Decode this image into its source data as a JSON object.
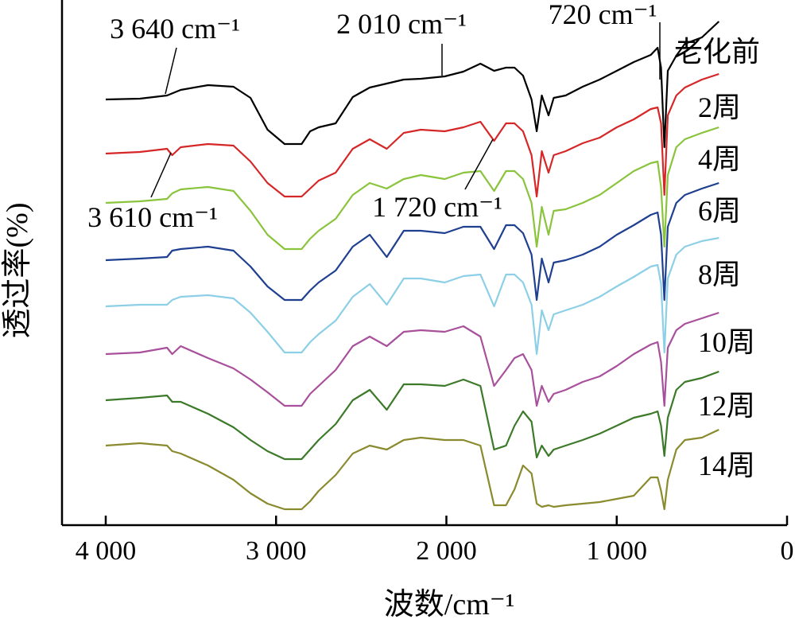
{
  "chart_data": {
    "type": "line",
    "title": "",
    "xlabel": "波数/cm⁻¹",
    "ylabel": "透过率(%)",
    "xlim": [
      4000,
      0
    ],
    "x_reversed": true,
    "xticks": [
      4000,
      3000,
      2000,
      1000,
      0
    ],
    "xtick_labels": [
      "4 000",
      "3 000",
      "2 000",
      "1 000",
      "0"
    ],
    "grid": false,
    "legend": "none",
    "series": [
      {
        "name": "老化前",
        "color": "#000000",
        "x": [
          4000,
          3800,
          3640,
          3560,
          3400,
          3250,
          3150,
          3050,
          2950,
          2850,
          2800,
          2750,
          2650,
          2550,
          2450,
          2350,
          2250,
          2150,
          2010,
          1900,
          1800,
          1720,
          1650,
          1600,
          1550,
          1500,
          1470,
          1440,
          1400,
          1370,
          1300,
          1200,
          1100,
          1000,
          900,
          800,
          760,
          740,
          720,
          700,
          650,
          600,
          500,
          400
        ],
        "y": [
          120,
          119,
          115,
          108,
          102,
          104,
          118,
          158,
          176,
          176,
          160,
          155,
          150,
          117,
          105,
          100,
          95,
          94,
          91,
          85,
          75,
          84,
          80,
          80,
          90,
          120,
          160,
          115,
          140,
          118,
          115,
          104,
          95,
          84,
          73,
          64,
          55,
          80,
          180,
          84,
          65,
          50,
          42,
          22
        ]
      },
      {
        "name": "2周",
        "color": "#d62728",
        "x": [
          4000,
          3800,
          3640,
          3610,
          3560,
          3400,
          3250,
          3150,
          3050,
          2950,
          2850,
          2800,
          2750,
          2650,
          2550,
          2450,
          2350,
          2250,
          2150,
          2010,
          1900,
          1800,
          1720,
          1650,
          1600,
          1550,
          1500,
          1470,
          1440,
          1400,
          1370,
          1300,
          1200,
          1100,
          1000,
          900,
          800,
          760,
          740,
          720,
          700,
          650,
          600,
          500,
          400
        ],
        "y": [
          188,
          186,
          182,
          190,
          180,
          176,
          178,
          198,
          225,
          242,
          242,
          232,
          222,
          212,
          182,
          170,
          182,
          162,
          158,
          160,
          155,
          148,
          172,
          150,
          150,
          160,
          190,
          242,
          185,
          212,
          190,
          185,
          175,
          168,
          155,
          145,
          132,
          130,
          150,
          240,
          140,
          115,
          105,
          95,
          88
        ]
      },
      {
        "name": "4周",
        "color": "#8ac43c",
        "x": [
          4000,
          3800,
          3640,
          3610,
          3560,
          3400,
          3250,
          3150,
          3050,
          2950,
          2850,
          2800,
          2750,
          2650,
          2550,
          2450,
          2350,
          2250,
          2150,
          2010,
          1900,
          1800,
          1720,
          1650,
          1600,
          1550,
          1500,
          1470,
          1440,
          1400,
          1370,
          1300,
          1200,
          1100,
          1000,
          900,
          800,
          760,
          740,
          720,
          700,
          650,
          600,
          500,
          400
        ],
        "y": [
          250,
          248,
          245,
          238,
          233,
          230,
          235,
          260,
          290,
          308,
          308,
          295,
          285,
          270,
          240,
          225,
          232,
          220,
          215,
          220,
          212,
          210,
          235,
          210,
          210,
          220,
          250,
          305,
          255,
          290,
          260,
          258,
          250,
          240,
          225,
          210,
          200,
          198,
          230,
          305,
          215,
          180,
          170,
          162,
          155
        ]
      },
      {
        "name": "6周",
        "color": "#1f3f91",
        "x": [
          4000,
          3800,
          3640,
          3610,
          3560,
          3400,
          3250,
          3150,
          3050,
          2950,
          2850,
          2800,
          2750,
          2650,
          2550,
          2450,
          2350,
          2250,
          2150,
          2010,
          1900,
          1800,
          1720,
          1650,
          1600,
          1550,
          1500,
          1470,
          1440,
          1400,
          1370,
          1300,
          1200,
          1100,
          1000,
          900,
          800,
          760,
          740,
          720,
          700,
          650,
          600,
          500,
          400
        ],
        "y": [
          322,
          320,
          318,
          310,
          308,
          305,
          310,
          330,
          355,
          372,
          372,
          360,
          350,
          335,
          305,
          290,
          318,
          285,
          285,
          288,
          280,
          280,
          308,
          278,
          278,
          288,
          315,
          372,
          320,
          350,
          325,
          322,
          315,
          305,
          290,
          278,
          265,
          262,
          290,
          372,
          280,
          250,
          240,
          232,
          225
        ]
      },
      {
        "name": "8周",
        "color": "#8ccfe6",
        "x": [
          4000,
          3800,
          3640,
          3610,
          3560,
          3400,
          3250,
          3150,
          3050,
          2950,
          2850,
          2800,
          2750,
          2650,
          2550,
          2450,
          2350,
          2250,
          2150,
          2010,
          1900,
          1800,
          1720,
          1650,
          1600,
          1550,
          1500,
          1470,
          1440,
          1400,
          1370,
          1300,
          1200,
          1100,
          1000,
          900,
          800,
          760,
          740,
          720,
          700,
          650,
          600,
          500,
          400
        ],
        "y": [
          380,
          378,
          378,
          372,
          368,
          366,
          370,
          388,
          412,
          438,
          438,
          425,
          415,
          398,
          368,
          352,
          378,
          345,
          345,
          350,
          342,
          340,
          380,
          340,
          340,
          350,
          378,
          440,
          385,
          410,
          390,
          385,
          378,
          368,
          355,
          343,
          330,
          328,
          352,
          438,
          345,
          315,
          305,
          298,
          294
        ]
      },
      {
        "name": "10周",
        "color": "#a8509c",
        "x": [
          4000,
          3800,
          3640,
          3610,
          3560,
          3400,
          3250,
          3150,
          3050,
          2950,
          2850,
          2800,
          2750,
          2650,
          2550,
          2450,
          2350,
          2250,
          2150,
          2010,
          1900,
          1800,
          1720,
          1650,
          1600,
          1550,
          1500,
          1470,
          1440,
          1400,
          1370,
          1300,
          1200,
          1100,
          1000,
          900,
          800,
          760,
          740,
          720,
          700,
          650,
          600,
          500,
          400
        ],
        "y": [
          440,
          438,
          432,
          440,
          430,
          445,
          458,
          472,
          488,
          505,
          505,
          490,
          480,
          460,
          430,
          418,
          430,
          412,
          410,
          412,
          405,
          418,
          480,
          460,
          445,
          440,
          460,
          505,
          480,
          500,
          490,
          485,
          475,
          468,
          455,
          440,
          428,
          425,
          450,
          505,
          432,
          410,
          402,
          395,
          388
        ]
      },
      {
        "name": "12周",
        "color": "#3c7a2a",
        "x": [
          4000,
          3800,
          3640,
          3610,
          3560,
          3400,
          3250,
          3150,
          3050,
          2950,
          2850,
          2800,
          2750,
          2650,
          2550,
          2450,
          2350,
          2250,
          2150,
          2010,
          1900,
          1800,
          1720,
          1650,
          1600,
          1550,
          1500,
          1470,
          1440,
          1400,
          1370,
          1300,
          1200,
          1100,
          1000,
          900,
          800,
          760,
          740,
          720,
          700,
          650,
          600,
          500,
          400
        ],
        "y": [
          498,
          495,
          492,
          500,
          500,
          515,
          532,
          548,
          562,
          572,
          572,
          560,
          548,
          528,
          498,
          485,
          510,
          478,
          478,
          480,
          472,
          480,
          560,
          555,
          530,
          512,
          525,
          570,
          555,
          568,
          560,
          555,
          548,
          540,
          530,
          520,
          515,
          512,
          530,
          568,
          520,
          485,
          475,
          470,
          462
        ]
      },
      {
        "name": "14周",
        "color": "#8a8a2e",
        "x": [
          4000,
          3800,
          3640,
          3610,
          3560,
          3400,
          3250,
          3150,
          3050,
          2950,
          2850,
          2800,
          2750,
          2650,
          2550,
          2450,
          2350,
          2250,
          2150,
          2010,
          1900,
          1800,
          1720,
          1650,
          1600,
          1550,
          1500,
          1470,
          1440,
          1400,
          1370,
          1300,
          1200,
          1100,
          1000,
          900,
          800,
          760,
          740,
          720,
          700,
          650,
          600,
          500,
          400
        ],
        "y": [
          555,
          552,
          555,
          562,
          565,
          580,
          598,
          615,
          628,
          635,
          635,
          625,
          612,
          592,
          565,
          555,
          560,
          548,
          545,
          548,
          548,
          555,
          630,
          630,
          610,
          580,
          590,
          628,
          632,
          630,
          632,
          630,
          628,
          626,
          622,
          618,
          595,
          595,
          612,
          635,
          598,
          560,
          548,
          545,
          535
        ]
      }
    ],
    "annotations": [
      {
        "text": "3 640 cm⁻¹",
        "x": 3640
      },
      {
        "text": "2 010 cm⁻¹",
        "x": 2010
      },
      {
        "text": "720 cm⁻¹",
        "x": 720
      },
      {
        "text": "3 610 cm⁻¹",
        "x": 3610
      },
      {
        "text": "1 720 cm⁻¹",
        "x": 1720
      }
    ]
  }
}
